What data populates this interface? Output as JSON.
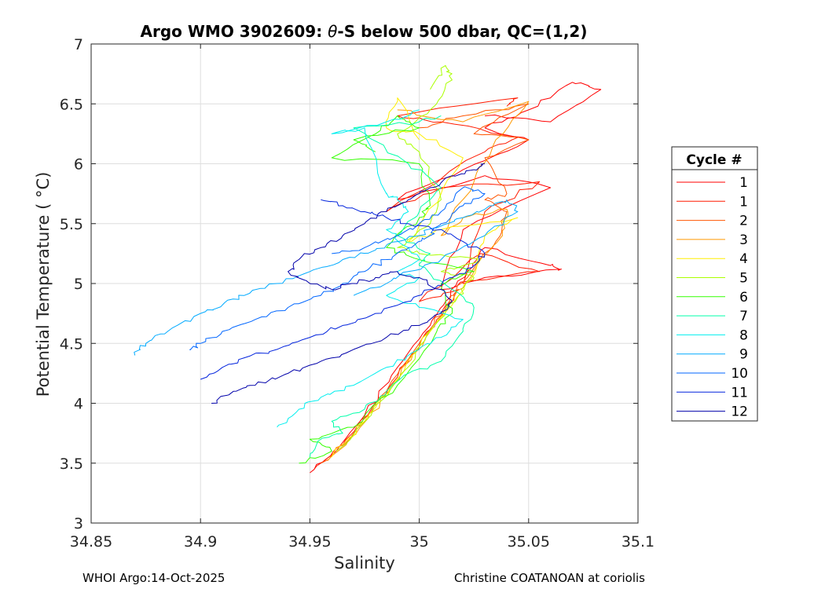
{
  "chart_data": {
    "type": "line",
    "title_main": "Argo WMO 3902609: ",
    "title_theta": "θ",
    "title_rest": "-S below 500 dbar,  QC=(1,2)",
    "xlabel": "Salinity",
    "ylabel": "Potential Temperature ( °C)",
    "xlim": [
      34.85,
      35.1
    ],
    "ylim": [
      3,
      7
    ],
    "xticks": [
      "34.85",
      "34.9",
      "34.95",
      "35",
      "35.05",
      "35.1"
    ],
    "xtick_values": [
      34.85,
      34.9,
      34.95,
      35.0,
      35.05,
      35.1
    ],
    "yticks": [
      "3",
      "3.5",
      "4",
      "4.5",
      "5",
      "5.5",
      "6",
      "6.5",
      "7"
    ],
    "ytick_values": [
      3,
      3.5,
      4,
      4.5,
      5,
      5.5,
      6,
      6.5,
      7
    ],
    "grid": true,
    "legend_title": "Cycle #",
    "legend_position": "right",
    "series": [
      {
        "name": "1",
        "color": "#ff0000",
        "points": [
          [
            34.95,
            3.42
          ],
          [
            34.962,
            3.6
          ],
          [
            34.975,
            3.9
          ],
          [
            34.99,
            4.3
          ],
          [
            35.005,
            4.65
          ],
          [
            35.012,
            4.85
          ],
          [
            35.022,
            5.1
          ],
          [
            35.03,
            5.3
          ],
          [
            35.06,
            5.15
          ],
          [
            35.065,
            5.12
          ],
          [
            35.03,
            5.05
          ],
          [
            35.01,
            4.95
          ],
          [
            35.02,
            5.45
          ],
          [
            35.06,
            5.8
          ],
          [
            35.03,
            5.9
          ],
          [
            34.99,
            5.7
          ],
          [
            35.02,
            5.95
          ],
          [
            35.05,
            6.2
          ],
          [
            35.03,
            6.3
          ],
          [
            35.05,
            6.45
          ],
          [
            35.07,
            6.68
          ],
          [
            35.083,
            6.62
          ],
          [
            35.06,
            6.35
          ],
          [
            35.03,
            6.4
          ]
        ]
      },
      {
        "name": "1",
        "color": "#ff1a00",
        "points": [
          [
            34.952,
            3.45
          ],
          [
            34.965,
            3.65
          ],
          [
            34.978,
            3.95
          ],
          [
            34.995,
            4.35
          ],
          [
            35.008,
            4.7
          ],
          [
            35.018,
            4.95
          ],
          [
            35.0,
            4.85
          ],
          [
            35.028,
            5.25
          ],
          [
            35.055,
            5.1
          ],
          [
            35.02,
            5.0
          ],
          [
            35.03,
            5.6
          ],
          [
            35.055,
            5.85
          ],
          [
            35.01,
            5.8
          ],
          [
            34.985,
            5.6
          ],
          [
            35.03,
            6.1
          ],
          [
            35.045,
            6.22
          ],
          [
            35.01,
            6.35
          ],
          [
            34.99,
            6.4
          ],
          [
            35.045,
            6.55
          ],
          [
            35.04,
            6.48
          ]
        ]
      },
      {
        "name": "2",
        "color": "#ff5500",
        "points": [
          [
            34.955,
            3.5
          ],
          [
            34.97,
            3.75
          ],
          [
            34.985,
            4.1
          ],
          [
            35.0,
            4.5
          ],
          [
            35.012,
            4.8
          ],
          [
            35.022,
            5.05
          ],
          [
            35.035,
            5.35
          ],
          [
            35.04,
            5.6
          ],
          [
            35.03,
            5.7
          ],
          [
            35.04,
            5.75
          ],
          [
            35.03,
            6.05
          ],
          [
            35.05,
            6.2
          ],
          [
            35.025,
            6.25
          ],
          [
            35.05,
            6.5
          ],
          [
            35.02,
            6.4
          ],
          [
            35.0,
            6.3
          ]
        ]
      },
      {
        "name": "3",
        "color": "#ff9900",
        "points": [
          [
            34.958,
            3.52
          ],
          [
            34.973,
            3.8
          ],
          [
            34.988,
            4.15
          ],
          [
            35.003,
            4.55
          ],
          [
            35.015,
            4.85
          ],
          [
            35.025,
            5.1
          ],
          [
            35.038,
            5.4
          ],
          [
            35.04,
            5.62
          ],
          [
            35.02,
            5.55
          ],
          [
            35.01,
            5.4
          ],
          [
            35.025,
            5.85
          ],
          [
            35.035,
            6.2
          ],
          [
            35.05,
            6.52
          ],
          [
            35.02,
            6.35
          ],
          [
            34.99,
            6.45
          ]
        ]
      },
      {
        "name": "4",
        "color": "#ffee00",
        "points": [
          [
            34.96,
            3.55
          ],
          [
            34.975,
            3.85
          ],
          [
            34.99,
            4.2
          ],
          [
            35.005,
            4.6
          ],
          [
            35.017,
            4.88
          ],
          [
            35.026,
            5.12
          ],
          [
            35.03,
            5.4
          ],
          [
            35.045,
            5.55
          ],
          [
            35.01,
            5.45
          ],
          [
            34.995,
            5.35
          ],
          [
            35.01,
            5.75
          ],
          [
            35.02,
            6.05
          ],
          [
            35.0,
            6.25
          ],
          [
            34.985,
            6.3
          ],
          [
            34.99,
            6.55
          ],
          [
            35.0,
            6.2
          ]
        ]
      },
      {
        "name": "5",
        "color": "#aaff00",
        "points": [
          [
            34.962,
            3.6
          ],
          [
            34.978,
            3.9
          ],
          [
            34.992,
            4.25
          ],
          [
            35.007,
            4.65
          ],
          [
            35.018,
            4.9
          ],
          [
            35.025,
            5.05
          ],
          [
            35.01,
            5.1
          ],
          [
            35.028,
            5.2
          ],
          [
            35.0,
            5.25
          ],
          [
            34.99,
            5.3
          ],
          [
            35.005,
            5.5
          ],
          [
            35.01,
            5.7
          ],
          [
            35.0,
            6.1
          ],
          [
            34.99,
            6.25
          ],
          [
            35.005,
            6.45
          ],
          [
            35.015,
            6.7
          ],
          [
            35.012,
            6.82
          ],
          [
            35.005,
            6.62
          ]
        ]
      },
      {
        "name": "6",
        "color": "#33ff00",
        "points": [
          [
            34.945,
            3.5
          ],
          [
            34.96,
            3.6
          ],
          [
            34.95,
            3.7
          ],
          [
            34.97,
            3.8
          ],
          [
            34.99,
            4.15
          ],
          [
            35.008,
            4.6
          ],
          [
            35.015,
            4.75
          ],
          [
            35.01,
            5.0
          ],
          [
            35.025,
            5.1
          ],
          [
            35.0,
            5.2
          ],
          [
            34.985,
            5.3
          ],
          [
            35.0,
            5.55
          ],
          [
            35.005,
            5.65
          ],
          [
            35.0,
            6.0
          ],
          [
            34.96,
            6.05
          ],
          [
            34.98,
            6.25
          ],
          [
            34.99,
            6.4
          ],
          [
            35.0,
            6.3
          ],
          [
            34.97,
            6.2
          ],
          [
            34.98,
            6.1
          ]
        ]
      },
      {
        "name": "7",
        "color": "#00ffaa",
        "points": [
          [
            34.95,
            3.55
          ],
          [
            34.955,
            3.7
          ],
          [
            34.965,
            3.75
          ],
          [
            34.96,
            3.85
          ],
          [
            34.975,
            3.95
          ],
          [
            34.985,
            4.1
          ],
          [
            34.995,
            4.25
          ],
          [
            35.01,
            4.35
          ],
          [
            35.02,
            4.6
          ],
          [
            35.025,
            4.8
          ],
          [
            35.015,
            4.95
          ],
          [
            35.0,
            5.15
          ],
          [
            35.005,
            5.25
          ],
          [
            34.99,
            5.4
          ],
          [
            35.0,
            5.6
          ],
          [
            35.01,
            5.8
          ],
          [
            34.995,
            6.0
          ],
          [
            34.97,
            6.3
          ],
          [
            35.0,
            6.35
          ],
          [
            35.01,
            6.4
          ]
        ]
      },
      {
        "name": "8",
        "color": "#00eeee",
        "points": [
          [
            34.935,
            3.8
          ],
          [
            34.945,
            3.95
          ],
          [
            34.955,
            4.05
          ],
          [
            34.97,
            4.15
          ],
          [
            34.985,
            4.3
          ],
          [
            35.0,
            4.45
          ],
          [
            35.01,
            4.55
          ],
          [
            35.02,
            4.7
          ],
          [
            35.0,
            4.8
          ],
          [
            34.985,
            4.9
          ],
          [
            35.0,
            5.05
          ],
          [
            34.99,
            5.1
          ],
          [
            35.0,
            5.2
          ],
          [
            34.995,
            5.3
          ],
          [
            34.985,
            5.45
          ],
          [
            34.995,
            5.6
          ],
          [
            34.99,
            5.7
          ],
          [
            34.985,
            5.75
          ],
          [
            34.975,
            6.3
          ],
          [
            34.96,
            6.25
          ],
          [
            34.985,
            6.35
          ],
          [
            35.0,
            6.45
          ]
        ]
      },
      {
        "name": "9",
        "color": "#00aaff",
        "points": [
          [
            34.87,
            4.4
          ],
          [
            34.875,
            4.5
          ],
          [
            34.885,
            4.6
          ],
          [
            34.9,
            4.75
          ],
          [
            34.91,
            4.82
          ],
          [
            34.92,
            4.9
          ],
          [
            34.935,
            5.0
          ],
          [
            34.95,
            5.1
          ],
          [
            34.965,
            5.2
          ],
          [
            34.98,
            5.28
          ],
          [
            34.99,
            5.35
          ],
          [
            35.0,
            5.4
          ],
          [
            35.01,
            5.48
          ],
          [
            35.02,
            5.55
          ],
          [
            35.03,
            5.62
          ],
          [
            35.04,
            5.7
          ],
          [
            35.045,
            5.6
          ],
          [
            35.03,
            5.4
          ],
          [
            35.01,
            5.2
          ],
          [
            34.995,
            5.1
          ],
          [
            34.985,
            5.0
          ],
          [
            34.97,
            4.9
          ]
        ]
      },
      {
        "name": "10",
        "color": "#0066ff",
        "points": [
          [
            34.895,
            4.45
          ],
          [
            34.9,
            4.5
          ],
          [
            34.91,
            4.6
          ],
          [
            34.925,
            4.7
          ],
          [
            34.94,
            4.8
          ],
          [
            34.955,
            4.9
          ],
          [
            34.965,
            5.0
          ],
          [
            34.975,
            5.1
          ],
          [
            34.985,
            5.2
          ],
          [
            34.995,
            5.3
          ],
          [
            35.005,
            5.4
          ],
          [
            35.01,
            5.5
          ],
          [
            35.02,
            5.65
          ],
          [
            35.03,
            5.75
          ],
          [
            35.02,
            5.8
          ],
          [
            35.01,
            5.6
          ],
          [
            35.0,
            5.5
          ],
          [
            34.99,
            5.4
          ],
          [
            34.975,
            5.3
          ],
          [
            34.96,
            5.25
          ]
        ]
      },
      {
        "name": "11",
        "color": "#0022dd",
        "points": [
          [
            34.9,
            4.2
          ],
          [
            34.91,
            4.3
          ],
          [
            34.92,
            4.38
          ],
          [
            34.935,
            4.45
          ],
          [
            34.95,
            4.55
          ],
          [
            34.965,
            4.65
          ],
          [
            34.98,
            4.75
          ],
          [
            34.995,
            4.85
          ],
          [
            35.005,
            4.95
          ],
          [
            35.015,
            5.05
          ],
          [
            35.025,
            5.15
          ],
          [
            35.03,
            5.25
          ],
          [
            35.02,
            5.35
          ],
          [
            35.01,
            5.45
          ],
          [
            34.995,
            5.5
          ],
          [
            34.985,
            5.55
          ],
          [
            34.975,
            5.6
          ],
          [
            34.965,
            5.65
          ],
          [
            34.955,
            5.7
          ]
        ]
      },
      {
        "name": "12",
        "color": "#0000aa",
        "points": [
          [
            34.905,
            4.0
          ],
          [
            34.915,
            4.1
          ],
          [
            34.925,
            4.15
          ],
          [
            34.94,
            4.25
          ],
          [
            34.955,
            4.35
          ],
          [
            34.97,
            4.45
          ],
          [
            34.985,
            4.55
          ],
          [
            35.0,
            4.65
          ],
          [
            35.01,
            4.75
          ],
          [
            35.015,
            4.85
          ],
          [
            35.01,
            4.95
          ],
          [
            35.0,
            5.05
          ],
          [
            34.99,
            5.1
          ],
          [
            34.98,
            5.05
          ],
          [
            34.97,
            5.0
          ],
          [
            34.96,
            4.95
          ],
          [
            34.95,
            5.0
          ],
          [
            34.94,
            5.1
          ],
          [
            34.945,
            5.2
          ],
          [
            34.955,
            5.3
          ],
          [
            34.965,
            5.4
          ],
          [
            34.975,
            5.5
          ],
          [
            34.985,
            5.6
          ],
          [
            34.995,
            5.7
          ],
          [
            35.005,
            5.8
          ],
          [
            35.015,
            5.9
          ],
          [
            35.025,
            5.95
          ],
          [
            35.03,
            6.0
          ]
        ]
      }
    ]
  },
  "footer": {
    "left": "WHOI Argo:14-Oct-2025",
    "right": "Christine COATANOAN at coriolis"
  }
}
